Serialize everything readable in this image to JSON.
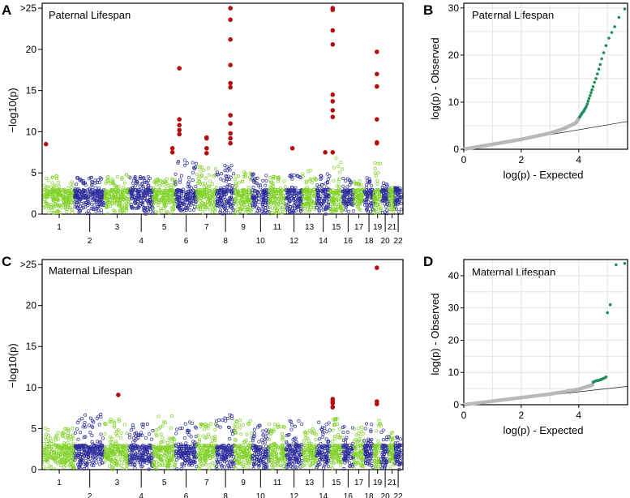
{
  "colors": {
    "blue": "#2d2d9c",
    "green": "#82d22a",
    "red": "#b40f0f",
    "teal": "#1f8c5c",
    "gray_pts": "#b9b9b9",
    "axis": "#000000"
  },
  "chart_data": [
    {
      "panel": "A",
      "type": "scatter",
      "subtype": "manhattan",
      "title": "Paternal Lifespan",
      "ylabel": "−log10(p)",
      "ylim": [
        0,
        25.6
      ],
      "yticks": [
        {
          "value": 0,
          "label": "0"
        },
        {
          "value": 5,
          "label": "5"
        },
        {
          "value": 10,
          "label": "10"
        },
        {
          "value": 15,
          "label": "15"
        },
        {
          "value": 20,
          "label": "20"
        },
        {
          "value": 25,
          "label": ">25"
        }
      ],
      "chromosomes": [
        "1",
        "2",
        "3",
        "4",
        "5",
        "6",
        "7",
        "8",
        "9",
        "10",
        "11",
        "12",
        "13",
        "14",
        "15",
        "16",
        "17",
        "18",
        "19",
        "20",
        "21",
        "22"
      ],
      "chrom_lengths": [
        249,
        243,
        198,
        191,
        181,
        171,
        159,
        146,
        141,
        136,
        135,
        134,
        115,
        107,
        102,
        90,
        83,
        80,
        59,
        64,
        47,
        51
      ],
      "background_ceiling": [
        4.8,
        4.6,
        4.8,
        4.6,
        4.4,
        6.6,
        5.8,
        6.2,
        5.1,
        4.9,
        4.6,
        4.8,
        5.4,
        5.0,
        7.2,
        4.4,
        4.1,
        4.6,
        6.4,
        3.8,
        3.4,
        3.2
      ],
      "hits": [
        {
          "chr": "1",
          "pos": 0.07,
          "values": [
            8.5
          ]
        },
        {
          "chr": "5",
          "pos": 0.86,
          "values": [
            7.5,
            8.0
          ]
        },
        {
          "chr": "6",
          "pos": 0.18,
          "values": [
            17.7,
            11.5,
            10.8,
            10.2,
            9.7
          ]
        },
        {
          "chr": "7",
          "pos": 0.5,
          "values": [
            9.3,
            9.2,
            8.0,
            7.4
          ]
        },
        {
          "chr": "8",
          "pos": 0.77,
          "values": [
            25,
            23.6,
            21.2,
            18.1,
            15.9,
            15.4,
            12.0,
            11.0,
            9.8,
            9.2,
            8.6
          ]
        },
        {
          "chr": "12",
          "pos": 0.4,
          "values": [
            8.0
          ]
        },
        {
          "chr": "14",
          "pos": 0.65,
          "values": [
            7.5
          ]
        },
        {
          "chr": "15",
          "pos": 0.22,
          "values": [
            25,
            24.8,
            22.3,
            20.6,
            14.5,
            13.7,
            12.6,
            11.8,
            7.5
          ]
        },
        {
          "chr": "19",
          "pos": 0.4,
          "values": [
            19.7,
            17.0,
            15.5,
            11.5,
            8.7,
            8.6
          ]
        }
      ]
    },
    {
      "panel": "B",
      "type": "scatter",
      "subtype": "qq",
      "title": "Paternal Lifespan",
      "xlabel": "log(p) - Expected",
      "ylabel": "log(p) - Observed",
      "xlim": [
        0,
        5.7
      ],
      "ylim": [
        0,
        31
      ],
      "xticks": [
        0,
        2,
        4
      ],
      "yticks": [
        0,
        10,
        20,
        30
      ],
      "grid": true,
      "diagonal": {
        "x": [
          0,
          5.7
        ],
        "y": [
          0,
          5.9
        ]
      },
      "main_curve": {
        "x": [
          0,
          1,
          2,
          3,
          3.5,
          3.9,
          4.0
        ],
        "y": [
          0,
          1.05,
          2.1,
          3.4,
          4.4,
          5.6,
          6.5
        ]
      },
      "tail_points": [
        [
          4.02,
          6.8
        ],
        [
          4.05,
          7.0
        ],
        [
          4.08,
          7.3
        ],
        [
          4.1,
          7.5
        ],
        [
          4.12,
          7.7
        ],
        [
          4.15,
          7.9
        ],
        [
          4.18,
          8.1
        ],
        [
          4.2,
          8.4
        ],
        [
          4.23,
          8.7
        ],
        [
          4.26,
          9.1
        ],
        [
          4.3,
          9.6
        ],
        [
          4.33,
          10.2
        ],
        [
          4.36,
          10.8
        ],
        [
          4.4,
          11.4
        ],
        [
          4.43,
          12.0
        ],
        [
          4.46,
          12.6
        ],
        [
          4.5,
          13.3
        ],
        [
          4.55,
          14.2
        ],
        [
          4.6,
          15.0
        ],
        [
          4.65,
          16.0
        ],
        [
          4.7,
          17.0
        ],
        [
          4.75,
          18.0
        ],
        [
          4.8,
          19.2
        ],
        [
          4.87,
          20.5
        ],
        [
          4.95,
          22.0
        ],
        [
          5.05,
          23.6
        ],
        [
          5.15,
          24.8
        ],
        [
          5.25,
          26.0
        ],
        [
          5.4,
          28.0
        ],
        [
          5.6,
          29.8
        ]
      ]
    },
    {
      "panel": "C",
      "type": "scatter",
      "subtype": "manhattan",
      "title": "Maternal Lifespan",
      "ylabel": "−log10(p)",
      "ylim": [
        0,
        25.6
      ],
      "yticks": [
        {
          "value": 0,
          "label": "0"
        },
        {
          "value": 5,
          "label": "5"
        },
        {
          "value": 10,
          "label": "10"
        },
        {
          "value": 15,
          "label": "15"
        },
        {
          "value": 20,
          "label": "20"
        },
        {
          "value": 25,
          "label": ">25"
        }
      ],
      "chromosomes": [
        "1",
        "2",
        "3",
        "4",
        "5",
        "6",
        "7",
        "8",
        "9",
        "10",
        "11",
        "12",
        "13",
        "14",
        "15",
        "16",
        "17",
        "18",
        "19",
        "20",
        "21",
        "22"
      ],
      "chrom_lengths": [
        249,
        243,
        198,
        191,
        181,
        171,
        159,
        146,
        141,
        136,
        135,
        134,
        115,
        107,
        102,
        90,
        83,
        80,
        59,
        64,
        47,
        51
      ],
      "background_ceiling": [
        5.2,
        6.8,
        6.2,
        5.6,
        6.6,
        6.0,
        5.6,
        6.8,
        6.2,
        5.4,
        5.6,
        6.0,
        5.0,
        5.8,
        6.4,
        5.6,
        5.2,
        5.6,
        6.2,
        5.0,
        4.6,
        4.2
      ],
      "hits": [
        {
          "chr": "3",
          "pos": 0.55,
          "values": [
            9.1
          ]
        },
        {
          "chr": "15",
          "pos": 0.22,
          "values": [
            8.6,
            8.3,
            8.1,
            7.6
          ]
        },
        {
          "chr": "19",
          "pos": 0.4,
          "values": [
            24.6,
            8.3,
            8.0
          ]
        }
      ]
    },
    {
      "panel": "D",
      "type": "scatter",
      "subtype": "qq",
      "title": "Maternal Lifespan",
      "xlabel": "log(p) - Expected",
      "ylabel": "log(p) - Observed",
      "xlim": [
        0,
        5.7
      ],
      "ylim": [
        0,
        45
      ],
      "xticks": [
        0,
        2,
        4
      ],
      "yticks": [
        0,
        10,
        20,
        30,
        40
      ],
      "grid": true,
      "diagonal": {
        "x": [
          0,
          5.7
        ],
        "y": [
          0,
          5.7
        ]
      },
      "main_curve": {
        "x": [
          0,
          1,
          2,
          3,
          4,
          4.5
        ],
        "y": [
          0,
          1.1,
          2.2,
          3.3,
          4.8,
          6.2
        ]
      },
      "tail_points": [
        [
          4.5,
          7.0
        ],
        [
          4.55,
          7.2
        ],
        [
          4.6,
          7.4
        ],
        [
          4.65,
          7.5
        ],
        [
          4.7,
          7.6
        ],
        [
          4.75,
          7.7
        ],
        [
          4.8,
          7.9
        ],
        [
          4.85,
          8.1
        ],
        [
          4.9,
          8.3
        ],
        [
          4.95,
          8.6
        ],
        [
          5.0,
          28.5
        ],
        [
          5.1,
          31.0
        ],
        [
          5.3,
          43.4
        ],
        [
          5.6,
          43.8
        ]
      ]
    }
  ],
  "panels": {
    "a": "A",
    "b": "B",
    "c": "C",
    "d": "D"
  }
}
